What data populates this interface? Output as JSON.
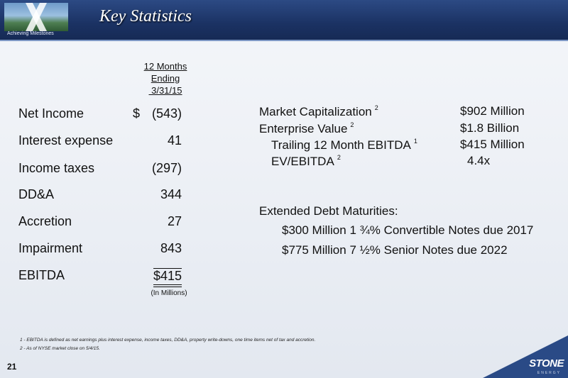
{
  "header": {
    "title": "Key Statistics",
    "tagline": "Achieving Milestones"
  },
  "column_header": [
    "12 Months",
    "Ending",
    " 3/31/15"
  ],
  "ebitda_table": [
    {
      "label": "Net Income",
      "dollar": "$",
      "value": "(543)"
    },
    {
      "label": "Interest expense",
      "dollar": "",
      "value": "41"
    },
    {
      "label": "Income taxes",
      "dollar": "",
      "value": "(297)"
    },
    {
      "label": "DD&A",
      "dollar": "",
      "value": "344"
    },
    {
      "label": "Accretion",
      "dollar": "",
      "value": "27"
    },
    {
      "label": "Impairment",
      "dollar": "",
      "value": "843"
    },
    {
      "label": "EBITDA",
      "dollar": "",
      "value": "$415"
    }
  ],
  "units": "(In Millions)",
  "market": [
    {
      "label": "Market Capitalization",
      "footnote": "2",
      "value": "$902 Million"
    },
    {
      "label": "Enterprise Value",
      "footnote": "2",
      "value": "$1.8 Billion"
    },
    {
      "label": "Trailing 12 Month EBITDA",
      "footnote": "1",
      "value": "$415 Million"
    },
    {
      "label": "EV/EBITDA",
      "footnote": "2",
      "value": "4.4x"
    }
  ],
  "debt": {
    "heading": "Extended Debt Maturities:",
    "items": [
      "$300 Million  1 ¾% Convertible Notes due 2017",
      "$775 Million  7 ½% Senior Notes due 2022"
    ]
  },
  "footnotes": [
    "1 - EBITDA is defined as net earnings plus interest expense, income taxes, DD&A, property write-downs, one time items net of tax and accretion.",
    "2 - As of NYSE market close on 5/4/15."
  ],
  "page_number": "21",
  "brand": {
    "name": "STONE",
    "sub": "ENERGY"
  }
}
